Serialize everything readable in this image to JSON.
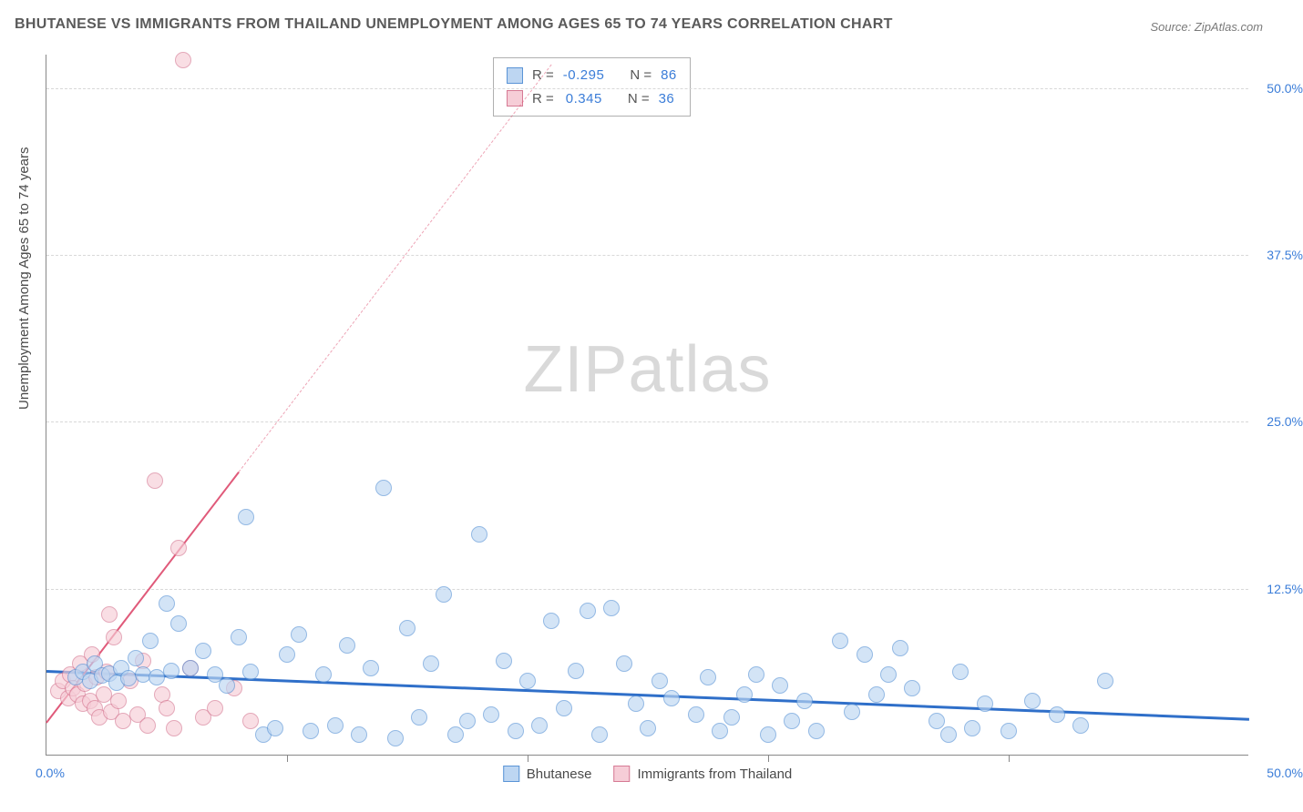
{
  "chart": {
    "type": "scatter",
    "title": "BHUTANESE VS IMMIGRANTS FROM THAILAND UNEMPLOYMENT AMONG AGES 65 TO 74 YEARS CORRELATION CHART",
    "source": "Source: ZipAtlas.com",
    "ylabel": "Unemployment Among Ages 65 to 74 years",
    "watermark_a": "ZIP",
    "watermark_b": "atlas",
    "background_color": "#ffffff",
    "grid_color": "#d8d8d8",
    "axis_color": "#888888",
    "xlim": [
      0,
      50
    ],
    "ylim": [
      0,
      52.5
    ],
    "xlim_label_left": "0.0%",
    "xlim_label_right": "50.0%",
    "xlim_color": "#3b7dd8",
    "ytick_values": [
      12.5,
      25.0,
      37.5,
      50.0
    ],
    "ytick_labels": [
      "12.5%",
      "25.0%",
      "37.5%",
      "50.0%"
    ],
    "ytick_color": "#3b7dd8",
    "xtick_positions": [
      10,
      20,
      30,
      40
    ],
    "marker_radius": 9,
    "marker_stroke_width": 1.2,
    "series": [
      {
        "name": "Bhutanese",
        "fill_color": "#bdd6f2",
        "stroke_color": "#5a94d6",
        "fill_opacity": 0.65,
        "r_value": "-0.295",
        "n_value": "86",
        "trend": {
          "x1": 0,
          "y1": 6.4,
          "x2": 50,
          "y2": 2.8,
          "color": "#2f6fc9",
          "width": 2.5,
          "dash_from_x": null
        },
        "points": [
          [
            1.2,
            5.8
          ],
          [
            1.5,
            6.2
          ],
          [
            1.8,
            5.5
          ],
          [
            2.0,
            6.8
          ],
          [
            2.3,
            5.9
          ],
          [
            2.6,
            6.1
          ],
          [
            2.9,
            5.4
          ],
          [
            3.1,
            6.5
          ],
          [
            3.4,
            5.7
          ],
          [
            3.7,
            7.2
          ],
          [
            4.0,
            6.0
          ],
          [
            4.3,
            8.5
          ],
          [
            4.6,
            5.8
          ],
          [
            5.0,
            11.3
          ],
          [
            5.2,
            6.3
          ],
          [
            5.5,
            9.8
          ],
          [
            6.0,
            6.5
          ],
          [
            6.5,
            7.8
          ],
          [
            7.0,
            6.0
          ],
          [
            7.5,
            5.2
          ],
          [
            8.0,
            8.8
          ],
          [
            8.3,
            17.8
          ],
          [
            8.5,
            6.2
          ],
          [
            9.0,
            1.5
          ],
          [
            9.5,
            2.0
          ],
          [
            10.0,
            7.5
          ],
          [
            10.5,
            9.0
          ],
          [
            11.0,
            1.8
          ],
          [
            11.5,
            6.0
          ],
          [
            12.0,
            2.2
          ],
          [
            12.5,
            8.2
          ],
          [
            13.0,
            1.5
          ],
          [
            13.5,
            6.5
          ],
          [
            14.0,
            20.0
          ],
          [
            14.5,
            1.2
          ],
          [
            15.0,
            9.5
          ],
          [
            15.5,
            2.8
          ],
          [
            16.0,
            6.8
          ],
          [
            16.5,
            12.0
          ],
          [
            17.0,
            1.5
          ],
          [
            17.5,
            2.5
          ],
          [
            18.0,
            16.5
          ],
          [
            18.5,
            3.0
          ],
          [
            19.0,
            7.0
          ],
          [
            19.5,
            1.8
          ],
          [
            20.0,
            5.5
          ],
          [
            20.5,
            2.2
          ],
          [
            21.0,
            10.0
          ],
          [
            21.5,
            3.5
          ],
          [
            22.0,
            6.3
          ],
          [
            22.5,
            10.8
          ],
          [
            23.0,
            1.5
          ],
          [
            23.5,
            11.0
          ],
          [
            24.0,
            6.8
          ],
          [
            24.5,
            3.8
          ],
          [
            25.0,
            2.0
          ],
          [
            25.5,
            5.5
          ],
          [
            26.0,
            4.2
          ],
          [
            27.0,
            3.0
          ],
          [
            27.5,
            5.8
          ],
          [
            28.0,
            1.8
          ],
          [
            28.5,
            2.8
          ],
          [
            29.0,
            4.5
          ],
          [
            29.5,
            6.0
          ],
          [
            30.0,
            1.5
          ],
          [
            30.5,
            5.2
          ],
          [
            31.0,
            2.5
          ],
          [
            31.5,
            4.0
          ],
          [
            32.0,
            1.8
          ],
          [
            33.0,
            8.5
          ],
          [
            33.5,
            3.2
          ],
          [
            34.0,
            7.5
          ],
          [
            34.5,
            4.5
          ],
          [
            35.0,
            6.0
          ],
          [
            35.5,
            8.0
          ],
          [
            36.0,
            5.0
          ],
          [
            37.0,
            2.5
          ],
          [
            37.5,
            1.5
          ],
          [
            38.0,
            6.2
          ],
          [
            38.5,
            2.0
          ],
          [
            39.0,
            3.8
          ],
          [
            40.0,
            1.8
          ],
          [
            41.0,
            4.0
          ],
          [
            42.0,
            3.0
          ],
          [
            43.0,
            2.2
          ],
          [
            44.0,
            5.5
          ]
        ]
      },
      {
        "name": "Immigrants from Thailand",
        "fill_color": "#f6cdd7",
        "stroke_color": "#d67a94",
        "fill_opacity": 0.65,
        "r_value": "0.345",
        "n_value": "36",
        "trend": {
          "x1": 0,
          "y1": 2.5,
          "x2": 21,
          "y2": 51.8,
          "color": "#e05a7a",
          "width": 2.2,
          "dash_from_x": 8
        },
        "points": [
          [
            0.5,
            4.8
          ],
          [
            0.7,
            5.5
          ],
          [
            0.9,
            4.2
          ],
          [
            1.0,
            6.0
          ],
          [
            1.1,
            5.0
          ],
          [
            1.3,
            4.5
          ],
          [
            1.4,
            6.8
          ],
          [
            1.5,
            3.8
          ],
          [
            1.6,
            5.3
          ],
          [
            1.8,
            4.0
          ],
          [
            1.9,
            7.5
          ],
          [
            2.0,
            3.5
          ],
          [
            2.1,
            5.8
          ],
          [
            2.2,
            2.8
          ],
          [
            2.4,
            4.5
          ],
          [
            2.5,
            6.2
          ],
          [
            2.6,
            10.5
          ],
          [
            2.7,
            3.2
          ],
          [
            2.8,
            8.8
          ],
          [
            3.0,
            4.0
          ],
          [
            3.2,
            2.5
          ],
          [
            3.5,
            5.5
          ],
          [
            3.8,
            3.0
          ],
          [
            4.0,
            7.0
          ],
          [
            4.2,
            2.2
          ],
          [
            4.5,
            20.5
          ],
          [
            4.8,
            4.5
          ],
          [
            5.0,
            3.5
          ],
          [
            5.3,
            2.0
          ],
          [
            5.5,
            15.5
          ],
          [
            5.7,
            52.0
          ],
          [
            6.0,
            6.5
          ],
          [
            6.5,
            2.8
          ],
          [
            7.0,
            3.5
          ],
          [
            7.8,
            5.0
          ],
          [
            8.5,
            2.5
          ]
        ]
      }
    ],
    "stats_labels": {
      "r": "R =",
      "n": "N ="
    },
    "legend": {
      "series1_label": "Bhutanese",
      "series2_label": "Immigrants from Thailand"
    }
  }
}
